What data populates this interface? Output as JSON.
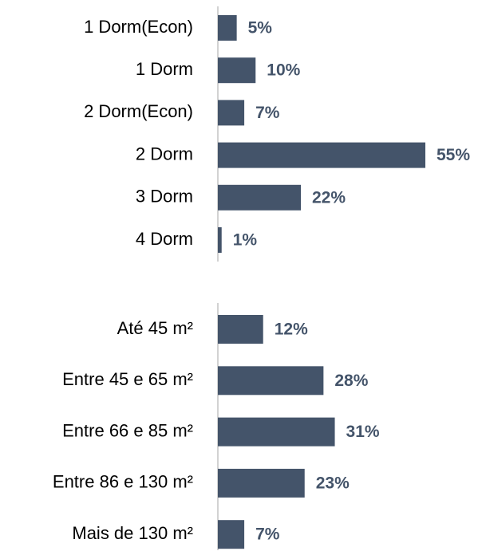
{
  "chart_data": [
    {
      "type": "bar",
      "orientation": "horizontal",
      "color": "#44546a",
      "categories": [
        "1 Dorm(Econ)",
        "1 Dorm",
        "2 Dorm(Econ)",
        "2 Dorm",
        "3 Dorm",
        "4 Dorm"
      ],
      "values": [
        5,
        10,
        7,
        55,
        22,
        1
      ],
      "value_labels": [
        "5%",
        "10%",
        "7%",
        "55%",
        "22%",
        "1%"
      ],
      "xlim": [
        0,
        55
      ]
    },
    {
      "type": "bar",
      "orientation": "horizontal",
      "color": "#44546a",
      "categories": [
        "Até 45 m²",
        "Entre 45 e 65 m²",
        "Entre 66 e 85 m²",
        "Entre 86 e 130 m²",
        "Mais de 130 m²"
      ],
      "values": [
        12,
        28,
        31,
        23,
        7
      ],
      "value_labels": [
        "12%",
        "28%",
        "31%",
        "23%",
        "7%"
      ],
      "xlim": [
        0,
        55
      ]
    }
  ]
}
